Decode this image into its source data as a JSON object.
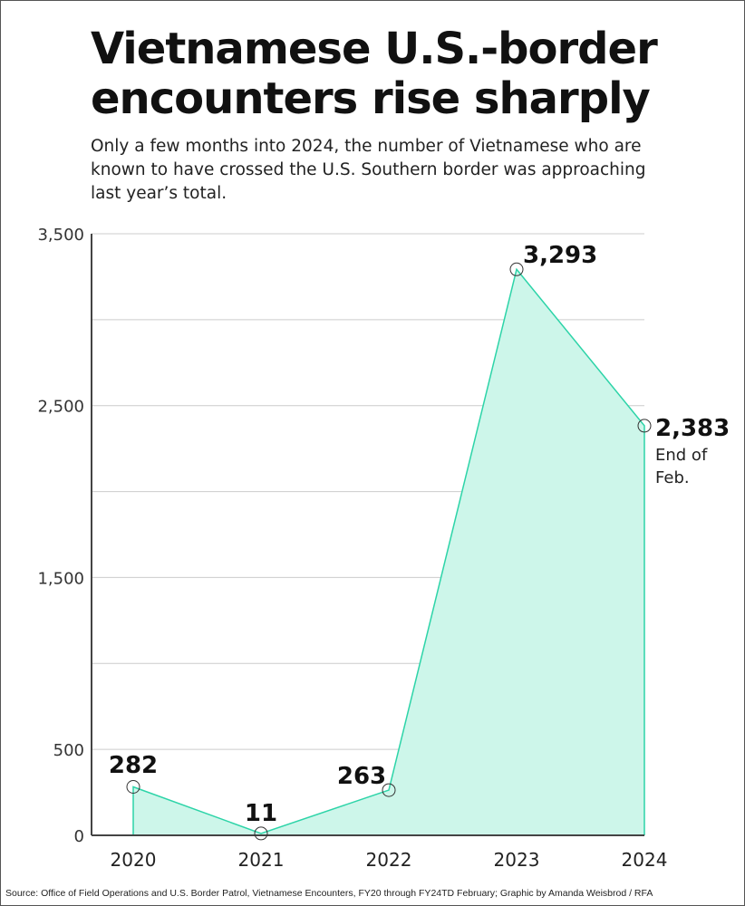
{
  "title": "Vietnamese U.S.-border encounters rise sharply",
  "subtitle": "Only a few months into 2024, the number of Vietnamese who are known to have crossed the U.S. Southern border was approaching last year’s total.",
  "source": "Source: Office of Field Operations and U.S. Border Patrol, Vietnamese Encounters, FY20 through FY24TD February; Graphic by Amanda Weisbrod / RFA",
  "chart_data": {
    "type": "area",
    "categories": [
      "2020",
      "2021",
      "2022",
      "2023",
      "2024"
    ],
    "values": [
      282,
      11,
      263,
      3293,
      2383
    ],
    "data_labels": [
      "282",
      "11",
      "263",
      "3,293",
      "2,383"
    ],
    "annotations": [
      {
        "category": "2024",
        "text_lines": [
          "End of",
          "Feb."
        ]
      }
    ],
    "ylim": [
      0,
      3500
    ],
    "yticks": [
      0,
      500,
      1500,
      2500,
      3500
    ],
    "ytick_labels": [
      "0",
      "500",
      "1,500",
      "2,500",
      "3,500"
    ],
    "gridlines": [
      500,
      1000,
      1500,
      2000,
      2500,
      3000,
      3500
    ],
    "grid": true,
    "colors": {
      "line": "#2dd4a8",
      "fill": "#cdf6ea",
      "grid": "#cccccc",
      "axis": "#444444"
    }
  }
}
